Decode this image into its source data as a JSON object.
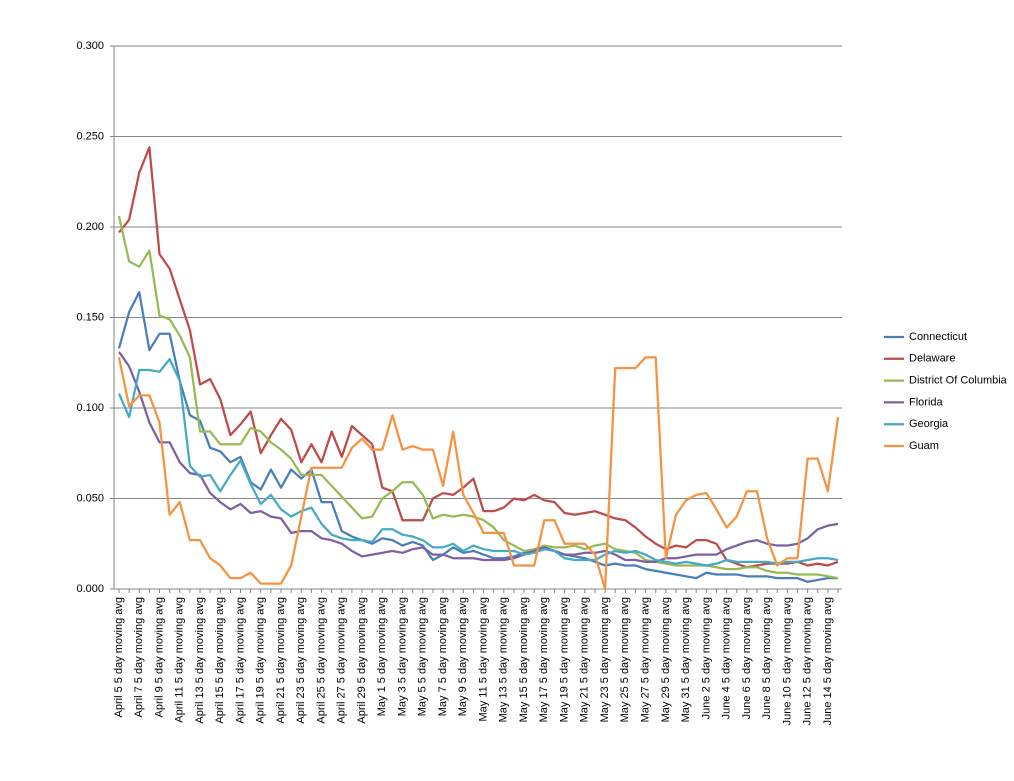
{
  "chart_data": {
    "type": "line",
    "categories": [
      "April 5 5 day moving avg",
      null,
      "April 7 5 day moving avg",
      null,
      "April 9 5 day moving avg",
      null,
      "April 11 5 day moving avg",
      null,
      "April 13 5 day moving avg",
      null,
      "April 15 5 day moving avg",
      null,
      "April 17 5 day moving avg",
      null,
      "April 19 5 day moving avg",
      null,
      "April 21 5 day moving avg",
      null,
      "April 23 5 day moving avg",
      null,
      "April 25 5 day moving avg",
      null,
      "April 27 5 day moving avg",
      null,
      "April 29 5 day moving avg",
      null,
      "May 1 5 day moving avg",
      null,
      "May 3 5 day moving avg",
      null,
      "May 5 5 day moving avg",
      null,
      "May 7 5 day moving avg",
      null,
      "May 9 5 day moving avg",
      null,
      "May 11 5 day moving avg",
      null,
      "May 13 5 day moving avg",
      null,
      "May 15 5 day moving avg",
      null,
      "May 17 5 day moving avg",
      null,
      "May 19 5 day moving avg",
      null,
      "May 21 5 day moving avg",
      null,
      "May 23 5 day moving avg",
      null,
      "May 25 5 day moving avg",
      null,
      "May 27 5 day moving avg",
      null,
      "May 29 5 day moving avg",
      null,
      "May 31 5 day moving avg",
      null,
      "June 2 5 day moving avg",
      null,
      "June 4 5 day moving avg",
      null,
      "June 6 5 day moving avg",
      null,
      "June 8 5 day moving avg",
      null,
      "June 10 5 day moving avg",
      null,
      "June 12 5 day moving avg",
      null,
      "June 14 5 day moving avg",
      null
    ],
    "series": [
      {
        "name": "Connecticut",
        "color": "#4a7ebb",
        "values": [
          0.133,
          0.153,
          0.164,
          0.132,
          0.141,
          0.141,
          0.115,
          0.096,
          0.093,
          0.078,
          0.076,
          0.07,
          0.073,
          0.059,
          0.055,
          0.066,
          0.056,
          0.066,
          0.061,
          0.066,
          0.048,
          0.048,
          0.032,
          0.029,
          0.027,
          0.025,
          0.028,
          0.027,
          0.024,
          0.026,
          0.024,
          0.016,
          0.019,
          0.023,
          0.02,
          0.021,
          0.019,
          0.017,
          0.017,
          0.018,
          0.02,
          0.021,
          0.023,
          0.021,
          0.019,
          0.018,
          0.017,
          0.015,
          0.013,
          0.014,
          0.013,
          0.013,
          0.011,
          0.01,
          0.009,
          0.008,
          0.007,
          0.006,
          0.009,
          0.008,
          0.008,
          0.008,
          0.007,
          0.007,
          0.007,
          0.006,
          0.006,
          0.006,
          0.004,
          0.005,
          0.006,
          0.006
        ]
      },
      {
        "name": "Delaware",
        "color": "#be4b48",
        "values": [
          0.197,
          0.204,
          0.23,
          0.244,
          0.185,
          0.177,
          0.16,
          0.143,
          0.113,
          0.116,
          0.105,
          0.085,
          0.091,
          0.098,
          0.075,
          0.085,
          0.094,
          0.088,
          0.07,
          0.08,
          0.07,
          0.087,
          0.073,
          0.09,
          0.085,
          0.08,
          0.056,
          0.054,
          0.038,
          0.038,
          0.038,
          0.05,
          0.053,
          0.052,
          0.056,
          0.061,
          0.043,
          0.043,
          0.045,
          0.05,
          0.049,
          0.052,
          0.049,
          0.048,
          0.042,
          0.041,
          0.042,
          0.043,
          0.041,
          0.039,
          0.038,
          0.034,
          0.029,
          0.025,
          0.022,
          0.024,
          0.023,
          0.027,
          0.027,
          0.025,
          0.016,
          0.014,
          0.012,
          0.013,
          0.014,
          0.014,
          0.014,
          0.015,
          0.013,
          0.014,
          0.013,
          0.015
        ]
      },
      {
        "name": "District Of Columbia",
        "color": "#98b954",
        "values": [
          0.206,
          0.181,
          0.178,
          0.187,
          0.151,
          0.149,
          0.14,
          0.128,
          0.087,
          0.087,
          0.08,
          0.08,
          0.08,
          0.089,
          0.087,
          0.081,
          0.077,
          0.072,
          0.063,
          0.063,
          0.063,
          0.057,
          0.051,
          0.045,
          0.039,
          0.04,
          0.05,
          0.054,
          0.059,
          0.059,
          0.052,
          0.039,
          0.041,
          0.04,
          0.041,
          0.04,
          0.038,
          0.034,
          0.027,
          0.024,
          0.021,
          0.022,
          0.024,
          0.023,
          0.023,
          0.024,
          0.022,
          0.024,
          0.025,
          0.022,
          0.021,
          0.02,
          0.016,
          0.015,
          0.014,
          0.013,
          0.013,
          0.013,
          0.013,
          0.012,
          0.011,
          0.011,
          0.012,
          0.012,
          0.01,
          0.009,
          0.009,
          0.008,
          0.008,
          0.008,
          0.007,
          0.006
        ]
      },
      {
        "name": "Florida",
        "color": "#7d60a0",
        "values": [
          0.131,
          0.123,
          0.109,
          0.092,
          0.081,
          0.081,
          0.07,
          0.064,
          0.063,
          0.053,
          0.048,
          0.044,
          0.047,
          0.042,
          0.043,
          0.04,
          0.039,
          0.031,
          0.032,
          0.032,
          0.028,
          0.027,
          0.025,
          0.021,
          0.018,
          0.019,
          0.02,
          0.021,
          0.02,
          0.022,
          0.023,
          0.019,
          0.019,
          0.017,
          0.017,
          0.017,
          0.016,
          0.016,
          0.016,
          0.017,
          0.019,
          0.021,
          0.023,
          0.021,
          0.019,
          0.019,
          0.02,
          0.02,
          0.021,
          0.019,
          0.016,
          0.016,
          0.015,
          0.015,
          0.017,
          0.017,
          0.018,
          0.019,
          0.019,
          0.019,
          0.022,
          0.024,
          0.026,
          0.027,
          0.025,
          0.024,
          0.024,
          0.025,
          0.028,
          0.033,
          0.035,
          0.036
        ]
      },
      {
        "name": "Georgia",
        "color": "#46aac5",
        "values": [
          0.108,
          0.095,
          0.121,
          0.121,
          0.12,
          0.127,
          0.115,
          0.068,
          0.062,
          0.063,
          0.054,
          0.063,
          0.071,
          0.058,
          0.047,
          0.052,
          0.044,
          0.04,
          0.043,
          0.045,
          0.036,
          0.03,
          0.028,
          0.027,
          0.027,
          0.026,
          0.033,
          0.033,
          0.03,
          0.029,
          0.027,
          0.023,
          0.023,
          0.025,
          0.021,
          0.024,
          0.022,
          0.021,
          0.021,
          0.021,
          0.019,
          0.02,
          0.022,
          0.021,
          0.017,
          0.016,
          0.016,
          0.016,
          0.019,
          0.021,
          0.02,
          0.021,
          0.019,
          0.016,
          0.015,
          0.014,
          0.015,
          0.014,
          0.013,
          0.014,
          0.016,
          0.015,
          0.015,
          0.015,
          0.015,
          0.014,
          0.015,
          0.015,
          0.016,
          0.017,
          0.017,
          0.016
        ]
      },
      {
        "name": "Guam",
        "color": "#f69240",
        "values": [
          0.128,
          0.101,
          0.107,
          0.107,
          0.092,
          0.041,
          0.048,
          0.027,
          0.027,
          0.017,
          0.013,
          0.006,
          0.006,
          0.009,
          0.003,
          0.003,
          0.003,
          0.013,
          0.04,
          0.067,
          0.067,
          0.067,
          0.067,
          0.078,
          0.083,
          0.077,
          0.077,
          0.096,
          0.077,
          0.079,
          0.077,
          0.077,
          0.057,
          0.087,
          0.052,
          0.042,
          0.031,
          0.031,
          0.031,
          0.013,
          0.013,
          0.013,
          0.038,
          0.038,
          0.025,
          0.025,
          0.025,
          0.019,
          0.0,
          0.122,
          0.122,
          0.122,
          0.128,
          0.128,
          0.017,
          0.041,
          0.049,
          0.052,
          0.053,
          0.044,
          0.034,
          0.04,
          0.054,
          0.054,
          0.028,
          0.013,
          0.017,
          0.017,
          0.072,
          0.072,
          0.054,
          0.095
        ]
      }
    ],
    "ylim": [
      0,
      0.3
    ],
    "yticks": [
      {
        "value": 0,
        "label": "0.000"
      },
      {
        "value": 0.05,
        "label": "0.050"
      },
      {
        "value": 0.1,
        "label": "0.100"
      },
      {
        "value": 0.15,
        "label": "0.150"
      },
      {
        "value": 0.2,
        "label": "0.200"
      },
      {
        "value": 0.25,
        "label": "0.250"
      },
      {
        "value": 0.3,
        "label": "0.300"
      }
    ],
    "grid": true,
    "legend": "right"
  }
}
